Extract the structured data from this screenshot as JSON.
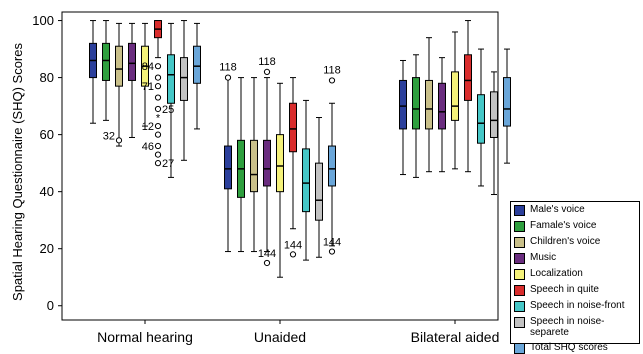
{
  "chart_data": {
    "type": "box",
    "ylabel": "Spatial Hearing Questionnaire (SHQ) Scores",
    "xlabel": "",
    "ylim": [
      -5,
      103
    ],
    "yticks": [
      0,
      20,
      40,
      60,
      80,
      100
    ],
    "grid": false,
    "legend_position": "bottom-right",
    "categories": [
      "Normal hearing",
      "Unaided",
      "Bilateral aided"
    ],
    "series": [
      {
        "name": "Male's voice",
        "color": "#2b3f9b",
        "boxes": [
          {
            "min": 64,
            "q1": 80,
            "median": 86,
            "q3": 92,
            "max": 100
          },
          {
            "min": 19,
            "q1": 41,
            "median": 48,
            "q3": 56,
            "max": 80
          },
          {
            "min": 46,
            "q1": 62,
            "median": 70,
            "q3": 79,
            "max": 86
          }
        ]
      },
      {
        "name": "Famale's voice",
        "color": "#2e9f3e",
        "boxes": [
          {
            "min": 65,
            "q1": 79,
            "median": 86,
            "q3": 92,
            "max": 100
          },
          {
            "min": 19,
            "q1": 38,
            "median": 48,
            "q3": 58,
            "max": 80
          },
          {
            "min": 45,
            "q1": 62,
            "median": 69,
            "q3": 80,
            "max": 88
          }
        ]
      },
      {
        "name": "Children's voice",
        "color": "#c9c08a",
        "boxes": [
          {
            "min": 56,
            "q1": 77,
            "median": 83,
            "q3": 91,
            "max": 99
          },
          {
            "min": 19,
            "q1": 40,
            "median": 46,
            "q3": 58,
            "max": 80
          },
          {
            "min": 47,
            "q1": 62,
            "median": 69,
            "q3": 79,
            "max": 94
          }
        ]
      },
      {
        "name": "Music",
        "color": "#6a2d7f",
        "boxes": [
          {
            "min": 59,
            "q1": 79,
            "median": 85,
            "q3": 92,
            "max": 99
          },
          {
            "min": 19,
            "q1": 42,
            "median": 48,
            "q3": 58,
            "max": 80
          },
          {
            "min": 47,
            "q1": 62,
            "median": 68,
            "q3": 78,
            "max": 87
          }
        ]
      },
      {
        "name": "Localization",
        "color": "#f5f27a",
        "boxes": [
          {
            "min": 63,
            "q1": 77,
            "median": 84,
            "q3": 91,
            "max": 99
          },
          {
            "min": 10,
            "q1": 40,
            "median": 49,
            "q3": 60,
            "max": 78
          },
          {
            "min": 48,
            "q1": 65,
            "median": 70,
            "q3": 82,
            "max": 96
          }
        ]
      },
      {
        "name": "Speech in quite",
        "color": "#d92d2d",
        "boxes": [
          {
            "min": 87,
            "q1": 94,
            "median": 97,
            "q3": 100,
            "max": 100
          },
          {
            "min": 27,
            "q1": 54,
            "median": 62,
            "q3": 71,
            "max": 80
          },
          {
            "min": 47,
            "q1": 72,
            "median": 79,
            "q3": 88,
            "max": 100
          }
        ]
      },
      {
        "name": "Speech in noise-front",
        "color": "#45c7c7",
        "boxes": [
          {
            "min": 45,
            "q1": 71,
            "median": 81,
            "q3": 88,
            "max": 99
          },
          {
            "min": 16,
            "q1": 33,
            "median": 43,
            "q3": 55,
            "max": 72
          },
          {
            "min": 42,
            "q1": 57,
            "median": 64,
            "q3": 74,
            "max": 90
          }
        ]
      },
      {
        "name": "Speech in noise-separete",
        "color": "#c2c2c2",
        "boxes": [
          {
            "min": 51,
            "q1": 72,
            "median": 80,
            "q3": 87,
            "max": 100
          },
          {
            "min": 17,
            "q1": 30,
            "median": 37,
            "q3": 50,
            "max": 66
          },
          {
            "min": 39,
            "q1": 59,
            "median": 65,
            "q3": 75,
            "max": 82
          }
        ]
      },
      {
        "name": "Total SHQ scores",
        "color": "#6aa6d9",
        "boxes": [
          {
            "min": 62,
            "q1": 78,
            "median": 84,
            "q3": 91,
            "max": 99
          },
          {
            "min": 21,
            "q1": 42,
            "median": 48,
            "q3": 56,
            "max": 71
          },
          {
            "min": 50,
            "q1": 63,
            "median": 69,
            "q3": 80,
            "max": 90
          }
        ]
      }
    ],
    "outliers": [
      {
        "group": 0,
        "series": 2,
        "value": 58,
        "kind": "circle",
        "label": "32"
      },
      {
        "group": 0,
        "series": 5,
        "value": 84,
        "kind": "circle",
        "label": "84"
      },
      {
        "group": 0,
        "series": 5,
        "value": 80,
        "kind": "circle",
        "label": ""
      },
      {
        "group": 0,
        "series": 5,
        "value": 77,
        "kind": "circle",
        "label": "71"
      },
      {
        "group": 0,
        "series": 5,
        "value": 73,
        "kind": "circle",
        "label": ""
      },
      {
        "group": 0,
        "series": 5,
        "value": 69,
        "kind": "circle",
        "label": "25"
      },
      {
        "group": 0,
        "series": 5,
        "value": 66,
        "kind": "star",
        "label": ""
      },
      {
        "group": 0,
        "series": 5,
        "value": 63,
        "kind": "circle",
        "label": "12"
      },
      {
        "group": 0,
        "series": 5,
        "value": 60,
        "kind": "circle",
        "label": ""
      },
      {
        "group": 0,
        "series": 5,
        "value": 56,
        "kind": "circle",
        "label": "46"
      },
      {
        "group": 0,
        "series": 5,
        "value": 53,
        "kind": "circle",
        "label": ""
      },
      {
        "group": 0,
        "series": 5,
        "value": 50,
        "kind": "circle",
        "label": "27"
      },
      {
        "group": 1,
        "series": 0,
        "value": 80,
        "kind": "circle",
        "label": "118"
      },
      {
        "group": 1,
        "series": 3,
        "value": 82,
        "kind": "circle",
        "label": "118"
      },
      {
        "group": 1,
        "series": 3,
        "value": 15,
        "kind": "circle",
        "label": "144"
      },
      {
        "group": 1,
        "series": 5,
        "value": 18,
        "kind": "circle",
        "label": "144"
      },
      {
        "group": 1,
        "series": 8,
        "value": 79,
        "kind": "circle",
        "label": "118"
      },
      {
        "group": 1,
        "series": 8,
        "value": 19,
        "kind": "circle",
        "label": "144"
      }
    ]
  }
}
